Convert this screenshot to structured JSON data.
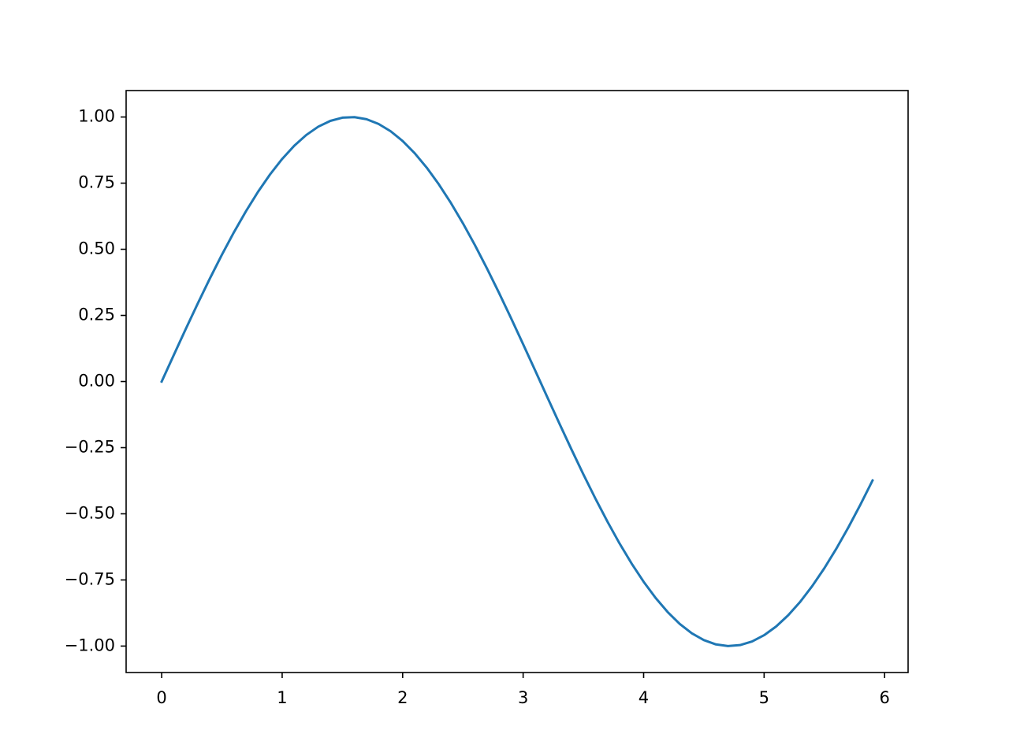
{
  "chart_data": {
    "type": "line",
    "x": [
      0,
      0.1,
      0.2,
      0.3,
      0.4,
      0.5,
      0.6,
      0.7,
      0.8,
      0.9,
      1.0,
      1.1,
      1.2,
      1.3,
      1.4,
      1.5,
      1.6,
      1.7,
      1.8,
      1.9,
      2.0,
      2.1,
      2.2,
      2.3,
      2.4,
      2.5,
      2.6,
      2.7,
      2.8,
      2.9,
      3.0,
      3.1,
      3.2,
      3.3,
      3.4,
      3.5,
      3.6,
      3.7,
      3.8,
      3.9,
      4.0,
      4.1,
      4.2,
      4.3,
      4.4,
      4.5,
      4.6,
      4.7,
      4.8,
      4.9,
      5.0,
      5.1,
      5.2,
      5.3,
      5.4,
      5.5,
      5.6,
      5.7,
      5.8,
      5.9
    ],
    "series": [
      {
        "color": "#1f77b4",
        "values": [
          0,
          0.0998,
          0.1987,
          0.2955,
          0.3894,
          0.4794,
          0.5646,
          0.6442,
          0.7174,
          0.7833,
          0.8415,
          0.8912,
          0.932,
          0.9636,
          0.9854,
          0.9975,
          0.9996,
          0.9917,
          0.9738,
          0.9463,
          0.9093,
          0.8632,
          0.8085,
          0.7457,
          0.6755,
          0.5985,
          0.5155,
          0.4274,
          0.335,
          0.2392,
          0.1411,
          0.0416,
          -0.0584,
          -0.1577,
          -0.2555,
          -0.3508,
          -0.4425,
          -0.5298,
          -0.6119,
          -0.6878,
          -0.7568,
          -0.8183,
          -0.8716,
          -0.9162,
          -0.9516,
          -0.9775,
          -0.9937,
          -0.9999,
          -0.9962,
          -0.9825,
          -0.9589,
          -0.9258,
          -0.8835,
          -0.8323,
          -0.7728,
          -0.7055,
          -0.6313,
          -0.5507,
          -0.4646,
          -0.3739
        ]
      }
    ],
    "xlim": [
      -0.295,
      6.195
    ],
    "xticks": [
      0,
      1,
      2,
      3,
      4,
      5,
      6
    ],
    "ylim": [
      -1.1,
      1.1
    ],
    "yticks": [
      {
        "value": -1,
        "label": "−1.00"
      },
      {
        "value": -0.75,
        "label": "−0.75"
      },
      {
        "value": -0.5,
        "label": "−0.50"
      },
      {
        "value": -0.25,
        "label": "−0.25"
      },
      {
        "value": 0,
        "label": "0.00"
      },
      {
        "value": 0.25,
        "label": "0.25"
      },
      {
        "value": 0.5,
        "label": "0.50"
      },
      {
        "value": 0.75,
        "label": "0.75"
      },
      {
        "value": 1,
        "label": "1.00"
      }
    ],
    "grid": false
  }
}
